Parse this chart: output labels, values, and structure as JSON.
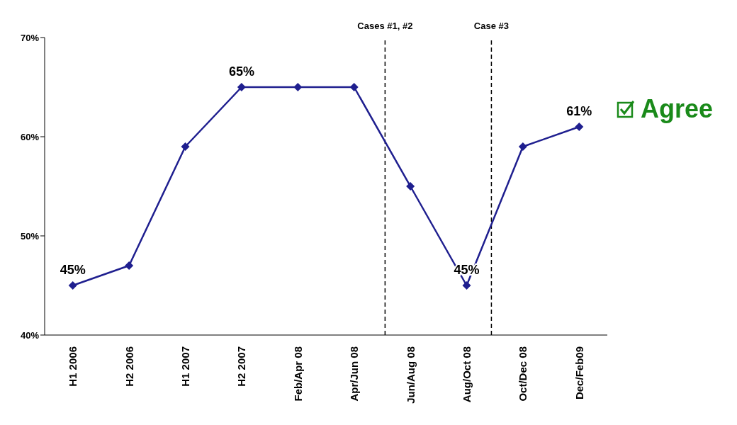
{
  "chart_data": {
    "type": "line",
    "categories": [
      "H1 2006",
      "H2 2006",
      "H1 2007",
      "H2 2007",
      "Feb/Apr 08",
      "Apr/Jun 08",
      "Jun/Aug 08",
      "Aug/Oct 08",
      "Oct/Dec 08",
      "Dec/Feb09"
    ],
    "series": [
      {
        "name": "Agree",
        "color": "#1f1f8f",
        "values": [
          45,
          47,
          59,
          65,
          65,
          65,
          55,
          45,
          59,
          61
        ],
        "value_labels": [
          "45%",
          null,
          null,
          "65%",
          null,
          null,
          null,
          "45%",
          null,
          "61%"
        ]
      }
    ],
    "ylim": [
      40,
      70
    ],
    "yticks": [
      {
        "value": 40,
        "label": "40%"
      },
      {
        "value": 50,
        "label": "50%"
      },
      {
        "value": 60,
        "label": "60%"
      },
      {
        "value": 70,
        "label": "70%"
      }
    ],
    "annotations": [
      "Cases #1, #2",
      "Case #3"
    ],
    "grid": false,
    "legend": "right",
    "marker": "diamond",
    "line_style": "solid"
  }
}
